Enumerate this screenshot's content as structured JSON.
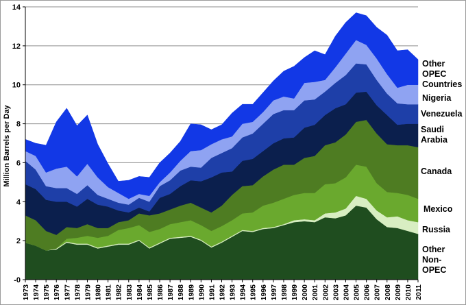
{
  "chart_data": {
    "type": "area",
    "stacked": true,
    "title": "",
    "xlabel": "",
    "ylabel": "Million Barrels per Day",
    "ylim": [
      0,
      14
    ],
    "yticks": [
      "-0",
      "2",
      "4",
      "6",
      "8",
      "10",
      "12",
      "14"
    ],
    "grid": "horizontal",
    "legend_position": "right",
    "x": [
      "1973",
      "1974",
      "1975",
      "1976",
      "1977",
      "1978",
      "1979",
      "1980",
      "1981",
      "1982",
      "1983",
      "1984",
      "1985",
      "1986",
      "1987",
      "1988",
      "1989",
      "1990",
      "1991",
      "1992",
      "1993",
      "1994",
      "1995",
      "1996",
      "1997",
      "1998",
      "1999",
      "2000",
      "2001",
      "2002",
      "2003",
      "2004",
      "2005",
      "2006",
      "2007",
      "2008",
      "2009",
      "2010",
      "2011"
    ],
    "series": [
      {
        "name": "Other Non-OPEC",
        "color": "#1f4d1f",
        "values": [
          1.9,
          1.75,
          1.5,
          1.55,
          1.9,
          1.8,
          1.8,
          1.6,
          1.7,
          1.8,
          1.8,
          2.0,
          1.6,
          1.85,
          2.1,
          2.15,
          2.2,
          2.0,
          1.65,
          1.9,
          2.2,
          2.5,
          2.45,
          2.6,
          2.65,
          2.8,
          2.95,
          3.0,
          2.95,
          3.2,
          3.15,
          3.3,
          3.8,
          3.7,
          3.1,
          2.7,
          2.65,
          2.5,
          2.35
        ]
      },
      {
        "name": "Russia",
        "color": "#d8eec2",
        "values": [
          0,
          0,
          0,
          0.05,
          0.05,
          0.05,
          0.05,
          0.05,
          0.05,
          0.05,
          0.05,
          0.05,
          0.05,
          0.05,
          0.05,
          0.05,
          0.05,
          0.05,
          0.05,
          0.05,
          0.05,
          0.05,
          0.05,
          0.05,
          0.05,
          0.05,
          0.1,
          0.1,
          0.1,
          0.2,
          0.3,
          0.35,
          0.5,
          0.45,
          0.45,
          0.5,
          0.6,
          0.55,
          0.6
        ]
      },
      {
        "name": "Mexico",
        "color": "#6aa92e",
        "values": [
          0,
          0,
          0,
          0,
          0.15,
          0.3,
          0.4,
          0.5,
          0.5,
          0.7,
          0.8,
          0.75,
          0.8,
          0.7,
          0.7,
          0.75,
          0.8,
          0.75,
          0.8,
          0.8,
          0.8,
          0.85,
          0.95,
          1.15,
          1.25,
          1.3,
          1.3,
          1.35,
          1.4,
          1.5,
          1.5,
          1.6,
          1.6,
          1.65,
          1.4,
          1.3,
          1.2,
          1.3,
          1.2
        ]
      },
      {
        "name": "Canada",
        "color": "#4e7c22",
        "values": [
          1.4,
          1.3,
          1.0,
          0.7,
          0.6,
          0.5,
          0.6,
          0.5,
          0.4,
          0.4,
          0.4,
          0.6,
          0.85,
          0.8,
          0.75,
          0.85,
          0.9,
          0.9,
          0.95,
          1.05,
          1.3,
          1.4,
          1.4,
          1.5,
          1.7,
          1.75,
          1.55,
          1.8,
          1.9,
          2.0,
          2.1,
          2.2,
          2.2,
          2.4,
          2.55,
          2.45,
          2.45,
          2.55,
          2.65
        ]
      },
      {
        "name": "Saudi Arabia",
        "color": "#0b1f4d",
        "values": [
          1.6,
          1.6,
          1.6,
          1.7,
          1.3,
          1.1,
          1.3,
          1.2,
          1.1,
          0.6,
          0.4,
          0.3,
          0.2,
          0.8,
          0.8,
          1.0,
          1.15,
          1.35,
          1.8,
          1.7,
          1.2,
          1.3,
          1.35,
          1.3,
          1.35,
          1.35,
          1.4,
          1.55,
          1.6,
          1.55,
          1.75,
          1.55,
          1.5,
          1.45,
          1.45,
          1.5,
          1.05,
          1.1,
          1.2
        ]
      },
      {
        "name": "Venezuela",
        "color": "#1e3fa8",
        "values": [
          1.2,
          1.0,
          0.7,
          0.7,
          0.7,
          0.65,
          0.7,
          0.5,
          0.4,
          0.4,
          0.4,
          0.5,
          0.5,
          0.6,
          0.7,
          0.8,
          0.7,
          0.7,
          1.0,
          1.0,
          1.2,
          1.2,
          1.3,
          1.4,
          1.5,
          1.45,
          1.4,
          1.4,
          1.3,
          1.2,
          1.3,
          1.5,
          1.5,
          1.4,
          1.3,
          1.1,
          1.1,
          1.0,
          1.0
        ]
      },
      {
        "name": "Nigeria",
        "color": "#8fa3f2",
        "values": [
          0.5,
          0.7,
          0.7,
          1.0,
          1.1,
          0.9,
          1.1,
          0.9,
          0.6,
          0.5,
          0.3,
          0.2,
          0.3,
          0.2,
          0.4,
          0.5,
          0.8,
          0.9,
          0.7,
          0.7,
          0.6,
          0.7,
          0.6,
          0.6,
          0.7,
          0.7,
          0.6,
          0.9,
          0.9,
          0.6,
          0.8,
          1.1,
          1.2,
          1.0,
          1.1,
          1.0,
          0.8,
          1.0,
          1.0
        ]
      },
      {
        "name": "Other OPEC Countries",
        "color": "#1238e6",
        "values": [
          0.6,
          0.65,
          1.4,
          2.4,
          3.0,
          2.6,
          2.5,
          1.7,
          1.2,
          0.6,
          0.95,
          0.9,
          0.95,
          1.0,
          1.0,
          1.0,
          1.4,
          1.3,
          0.75,
          0.75,
          1.2,
          1.0,
          0.9,
          1.0,
          1.0,
          1.3,
          1.65,
          1.3,
          1.6,
          1.3,
          1.6,
          1.6,
          1.4,
          1.5,
          1.6,
          2.0,
          1.9,
          1.8,
          1.3
        ]
      }
    ]
  },
  "legend": {
    "other_opec": [
      "Other",
      "OPEC",
      "Countries"
    ],
    "nigeria": [
      "Nigeria"
    ],
    "venezuela": [
      "Venezuela"
    ],
    "saudi": [
      "Saudi",
      "Arabia"
    ],
    "canada": [
      "Canada"
    ],
    "mexico": [
      "Mexico"
    ],
    "russia": [
      "Russia"
    ],
    "other_non_opec": [
      "Other",
      "Non-",
      "OPEC"
    ]
  }
}
